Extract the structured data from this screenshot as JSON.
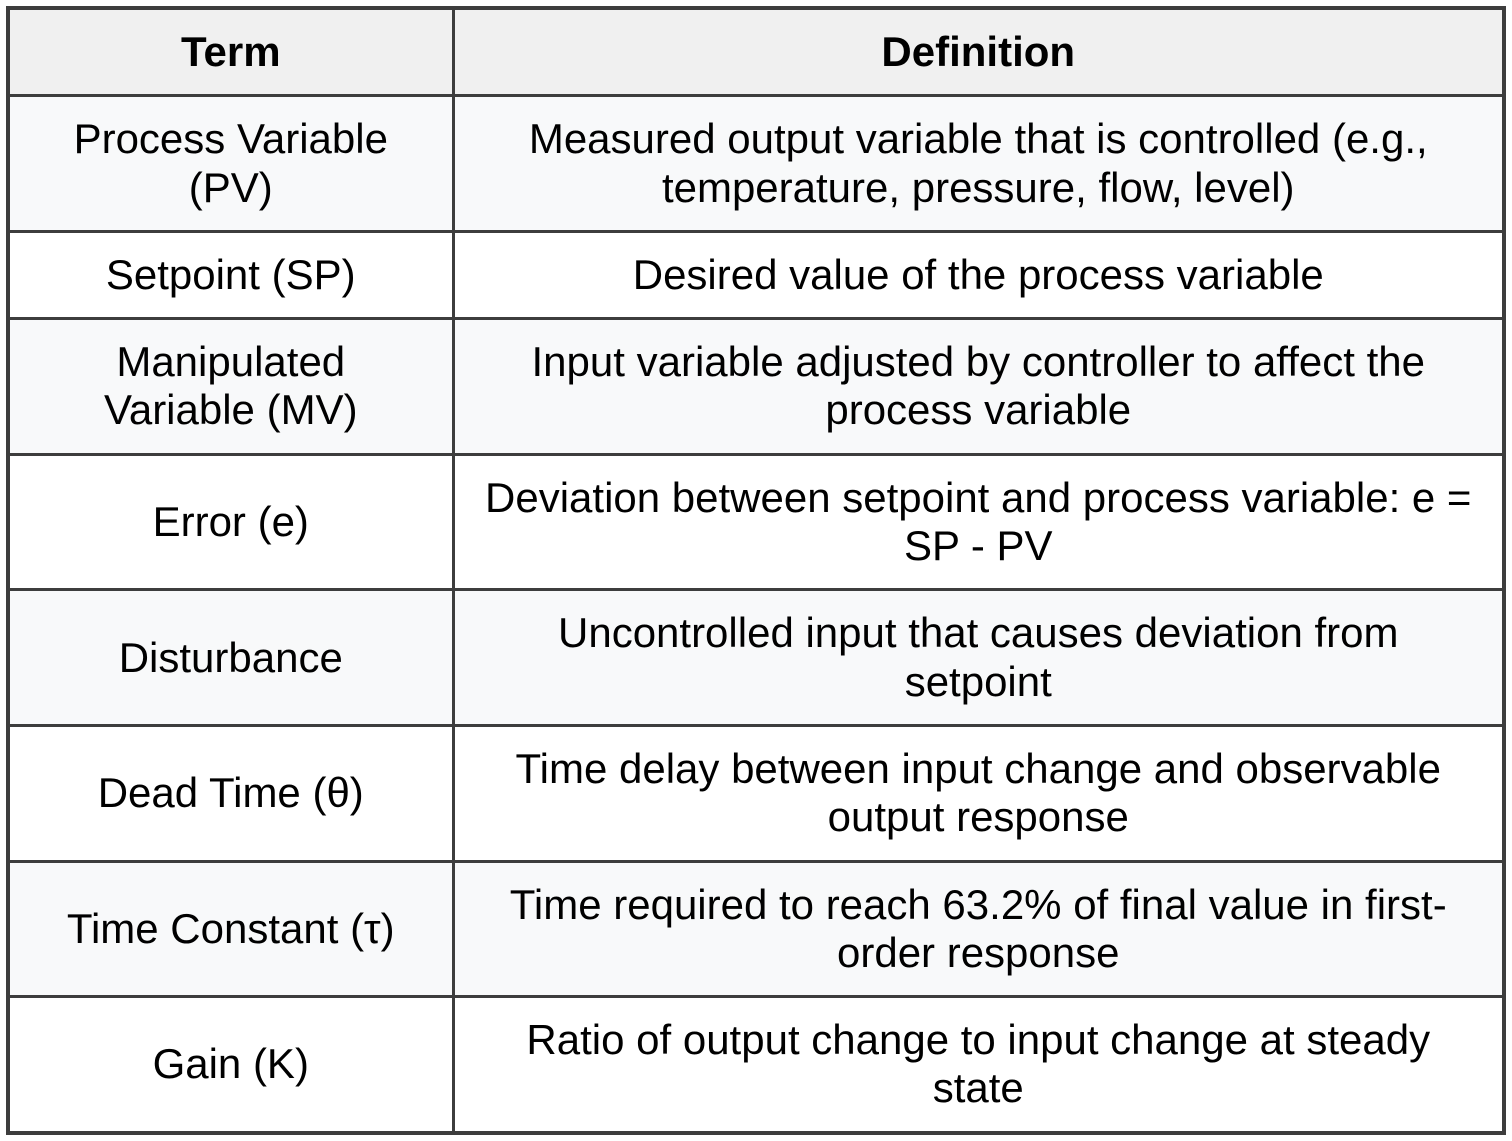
{
  "page": {
    "background": "#ffffff"
  },
  "table": {
    "columns": [
      "Term",
      "Definition"
    ],
    "rows": [
      {
        "term": "Process Variable (PV)",
        "definition": "Measured output variable that is controlled (e.g., temperature, pressure, flow, level)"
      },
      {
        "term": "Setpoint (SP)",
        "definition": "Desired value of the process variable"
      },
      {
        "term": "Manipulated Variable (MV)",
        "definition": "Input variable adjusted by controller to affect the process variable"
      },
      {
        "term": "Error (e)",
        "definition": "Deviation between setpoint and process variable: e = SP - PV"
      },
      {
        "term": "Disturbance",
        "definition": "Uncontrolled input that causes deviation from setpoint"
      },
      {
        "term": "Dead Time (θ)",
        "definition": "Time delay between input change and observable output response"
      },
      {
        "term": "Time Constant (τ)",
        "definition": "Time required to reach 63.2% of final value in first-order response"
      },
      {
        "term": "Gain (K)",
        "definition": "Ratio of output change to input change at steady state"
      }
    ],
    "colors": {
      "border": "#3d3d3d",
      "header_bg": "#f0f0f0",
      "stripe_bg": "#f8f9fa",
      "row_bg": "#ffffff",
      "text": "#000000",
      "page_bg": "#ffffff"
    }
  }
}
